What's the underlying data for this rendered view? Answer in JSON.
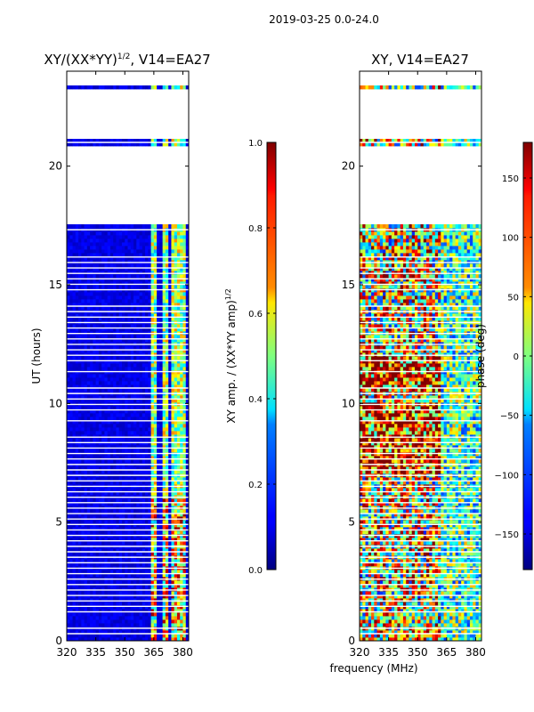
{
  "figure": {
    "suptitle": "2019-03-25 0.0-24.0",
    "common_xlabel": "frequency (MHz)"
  },
  "chart_data": [
    {
      "type": "heatmap",
      "title": "XY/(XX*YY)",
      "title_sup": "1/2",
      "title_suffix": ", V14=EA27",
      "xlabel": "",
      "ylabel": "UT (hours)",
      "xlim": [
        320,
        383
      ],
      "ylim": [
        0,
        24
      ],
      "xticks": [
        320,
        335,
        350,
        365,
        380
      ],
      "yticks": [
        0,
        5,
        10,
        15,
        20
      ],
      "flagged_hours": [
        [
          17.5,
          20.9
        ],
        [
          21.1,
          23.3
        ],
        [
          23.45,
          24.0
        ]
      ],
      "data_blocks": [
        {
          "ut": [
            16.2,
            17.5
          ],
          "value": 0.08
        },
        {
          "ut": [
            14.2,
            14.7
          ],
          "value": 0.08
        },
        {
          "ut": [
            10.7,
            11.6
          ],
          "value": 0.08
        },
        {
          "ut": [
            8.6,
            9.6
          ],
          "value": 0.08
        },
        {
          "ut": [
            0.6,
            1.1
          ],
          "value": 0.08
        }
      ],
      "bright_channel_bands_mhz": [
        [
          364,
          367
        ],
        [
          369.5,
          372
        ],
        [
          374.5,
          378
        ],
        [
          379,
          381
        ]
      ],
      "colorbar": {
        "label": "XY amp. / (XX*YY amp)",
        "label_sup": "1/2",
        "vmin": 0.0,
        "vmax": 1.0,
        "ticks": [
          "0.0",
          "0.2",
          "0.4",
          "0.6",
          "0.8",
          "1.0"
        ],
        "tick_values": [
          0.0,
          0.2,
          0.4,
          0.6,
          0.8,
          1.0
        ]
      }
    },
    {
      "type": "heatmap",
      "title": "XY, V14=EA27",
      "xlabel": "frequency (MHz)",
      "ylabel": "",
      "xlim": [
        320,
        383
      ],
      "ylim": [
        0,
        24
      ],
      "xticks": [
        320,
        335,
        350,
        365,
        380
      ],
      "yticks": [
        0,
        5,
        10,
        15,
        20
      ],
      "flagged_hours": [
        [
          17.5,
          20.9
        ],
        [
          21.1,
          23.3
        ],
        [
          23.45,
          24.0
        ]
      ],
      "colorbar": {
        "label": "phase (deg)",
        "vmin": -180,
        "vmax": 180,
        "ticks": [
          "150",
          "100",
          "50",
          "0",
          "−50",
          "−100",
          "−150"
        ],
        "tick_values": [
          150,
          100,
          50,
          0,
          -50,
          -100,
          -150
        ]
      }
    }
  ]
}
